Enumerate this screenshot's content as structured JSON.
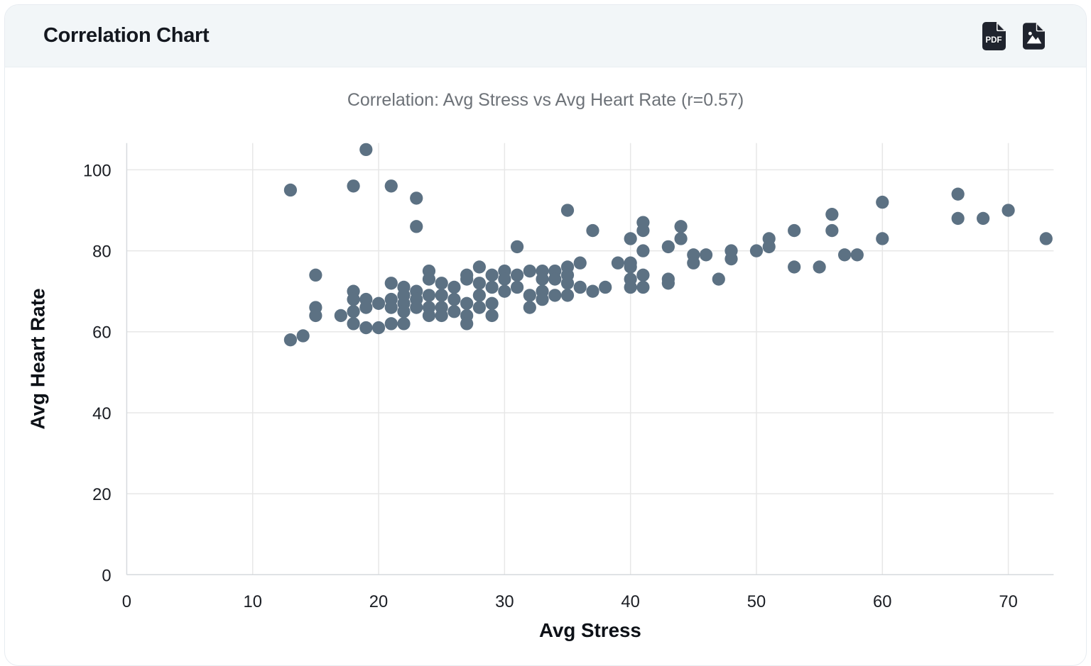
{
  "header": {
    "title": "Correlation Chart",
    "actions": [
      {
        "name": "export-pdf",
        "icon_label": "PDF"
      },
      {
        "name": "export-image"
      }
    ]
  },
  "theme": {
    "header_bg": "#f2f6f8",
    "icon_color": "#20242e",
    "point_color": "#5c7183",
    "grid_color": "#e7e7e7",
    "axis_line_color": "#d6dade",
    "tick_color": "#1a1d23",
    "chart_title_color": "#6d7278"
  },
  "chart_data": {
    "type": "scatter",
    "title": "Correlation: Avg Stress vs Avg Heart Rate (r=0.57)",
    "correlation_r": 0.57,
    "xlabel": "Avg Stress",
    "ylabel": "Avg Heart Rate",
    "xlim": [
      0,
      73.6
    ],
    "ylim": [
      0,
      106.6
    ],
    "x_ticks": [
      0,
      10,
      20,
      30,
      40,
      50,
      60,
      70
    ],
    "y_ticks": [
      0,
      20,
      40,
      60,
      80,
      100
    ],
    "grid": true,
    "legend": false,
    "series": [
      {
        "name": "Avg Stress vs Avg Heart Rate",
        "points": [
          [
            13,
            95
          ],
          [
            13,
            58
          ],
          [
            14,
            59
          ],
          [
            15,
            74
          ],
          [
            15,
            66
          ],
          [
            15,
            64
          ],
          [
            17,
            64
          ],
          [
            18,
            96
          ],
          [
            18,
            70
          ],
          [
            18,
            68
          ],
          [
            18,
            65
          ],
          [
            18,
            62
          ],
          [
            19,
            105
          ],
          [
            19,
            68
          ],
          [
            19,
            66
          ],
          [
            19,
            61
          ],
          [
            20,
            67
          ],
          [
            20,
            61
          ],
          [
            21,
            96
          ],
          [
            21,
            72
          ],
          [
            21,
            68
          ],
          [
            21,
            66
          ],
          [
            21,
            62
          ],
          [
            22,
            71
          ],
          [
            22,
            69
          ],
          [
            22,
            67
          ],
          [
            22,
            65
          ],
          [
            22,
            62
          ],
          [
            23,
            93
          ],
          [
            23,
            86
          ],
          [
            23,
            70
          ],
          [
            23,
            68
          ],
          [
            23,
            66
          ],
          [
            24,
            75
          ],
          [
            24,
            73
          ],
          [
            24,
            69
          ],
          [
            24,
            66
          ],
          [
            24,
            64
          ],
          [
            25,
            72
          ],
          [
            25,
            69
          ],
          [
            25,
            66
          ],
          [
            25,
            64
          ],
          [
            26,
            71
          ],
          [
            26,
            68
          ],
          [
            26,
            65
          ],
          [
            27,
            74
          ],
          [
            27,
            73
          ],
          [
            27,
            67
          ],
          [
            27,
            64
          ],
          [
            27,
            62
          ],
          [
            28,
            76
          ],
          [
            28,
            72
          ],
          [
            28,
            69
          ],
          [
            28,
            66
          ],
          [
            29,
            74
          ],
          [
            29,
            71
          ],
          [
            29,
            67
          ],
          [
            29,
            64
          ],
          [
            30,
            75
          ],
          [
            30,
            73
          ],
          [
            30,
            70
          ],
          [
            31,
            81
          ],
          [
            31,
            74
          ],
          [
            31,
            71
          ],
          [
            32,
            75
          ],
          [
            32,
            69
          ],
          [
            32,
            66
          ],
          [
            33,
            75
          ],
          [
            33,
            73
          ],
          [
            33,
            70
          ],
          [
            33,
            68
          ],
          [
            34,
            75
          ],
          [
            34,
            73
          ],
          [
            34,
            69
          ],
          [
            35,
            90
          ],
          [
            35,
            76
          ],
          [
            35,
            74
          ],
          [
            35,
            72
          ],
          [
            35,
            69
          ],
          [
            36,
            77
          ],
          [
            36,
            71
          ],
          [
            37,
            85
          ],
          [
            37,
            70
          ],
          [
            38,
            71
          ],
          [
            39,
            77
          ],
          [
            40,
            83
          ],
          [
            40,
            77
          ],
          [
            40,
            76
          ],
          [
            40,
            73
          ],
          [
            40,
            71
          ],
          [
            41,
            87
          ],
          [
            41,
            85
          ],
          [
            41,
            80
          ],
          [
            41,
            74
          ],
          [
            41,
            71
          ],
          [
            43,
            81
          ],
          [
            43,
            73
          ],
          [
            43,
            72
          ],
          [
            44,
            86
          ],
          [
            44,
            83
          ],
          [
            45,
            79
          ],
          [
            45,
            77
          ],
          [
            46,
            79
          ],
          [
            47,
            73
          ],
          [
            48,
            80
          ],
          [
            48,
            78
          ],
          [
            50,
            80
          ],
          [
            51,
            83
          ],
          [
            51,
            81
          ],
          [
            53,
            85
          ],
          [
            53,
            76
          ],
          [
            55,
            76
          ],
          [
            56,
            89
          ],
          [
            56,
            85
          ],
          [
            57,
            79
          ],
          [
            58,
            79
          ],
          [
            60,
            92
          ],
          [
            60,
            83
          ],
          [
            66,
            94
          ],
          [
            66,
            88
          ],
          [
            68,
            88
          ],
          [
            70,
            90
          ],
          [
            73,
            83
          ]
        ]
      }
    ]
  }
}
